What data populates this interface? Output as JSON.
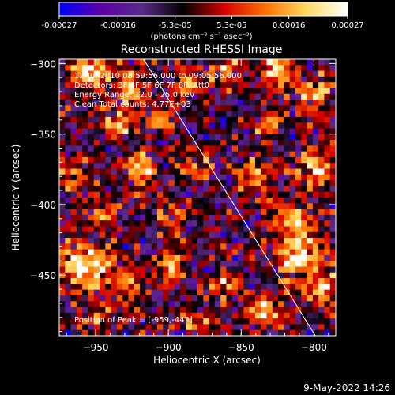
{
  "colorbar": {
    "tick_labels": [
      "-0.00027",
      "-0.00016",
      "-5.3e-05",
      "5.3e-05",
      "0.00016",
      "0.00027"
    ],
    "tick_values": [
      -0.00027,
      -0.00016,
      -5.3e-05,
      5.3e-05,
      0.00016,
      0.00027
    ],
    "range": [
      -0.00027,
      0.00027
    ],
    "units_label": "(photons cm⁻² s⁻¹ asec⁻²)"
  },
  "chart_data": {
    "type": "heatmap",
    "title": "Reconstructed RHESSI Image",
    "xlabel": "Heliocentric X (arcsec)",
    "ylabel": "Heliocentric Y (arcsec)",
    "xlim": [
      -975,
      -785
    ],
    "ylim": [
      -493,
      -297
    ],
    "x_ticks": [
      -950,
      -900,
      -850,
      -800
    ],
    "x_tick_labels": [
      "−950",
      "−900",
      "−850",
      "−800"
    ],
    "y_ticks": [
      -300,
      -350,
      -400,
      -450
    ],
    "y_tick_labels": [
      "−300",
      "−350",
      "−400",
      "−450"
    ],
    "annotations": [
      "12-Jul-2010 08:59:56.000 to 09:05:56.000",
      "Detectors: 3F 4F 5F 6F 7F 8F, Att0",
      "Energy Range: 12.0 - 25.0 keV",
      "Clean  Total counts: 4.77E+03"
    ],
    "peak_label": "Position of Peak = [-959,-443]",
    "peak": [
      -959,
      -443
    ],
    "grid": false,
    "limb_line": [
      [
        -917,
        -297
      ],
      [
        -799,
        -493
      ]
    ],
    "hot_spots": [
      {
        "x": -955,
        "y": -305,
        "s": 14,
        "a": 0.95
      },
      {
        "x": -925,
        "y": -318,
        "s": 12,
        "a": 0.7
      },
      {
        "x": -885,
        "y": -312,
        "s": 10,
        "a": 0.7
      },
      {
        "x": -860,
        "y": -305,
        "s": 10,
        "a": 0.6
      },
      {
        "x": -825,
        "y": -305,
        "s": 12,
        "a": 0.8
      },
      {
        "x": -800,
        "y": -320,
        "s": 12,
        "a": 0.8
      },
      {
        "x": -935,
        "y": -345,
        "s": 12,
        "a": 0.7
      },
      {
        "x": -905,
        "y": -340,
        "s": 10,
        "a": 0.6
      },
      {
        "x": -830,
        "y": -345,
        "s": 10,
        "a": 0.6
      },
      {
        "x": -965,
        "y": -380,
        "s": 10,
        "a": 0.6
      },
      {
        "x": -920,
        "y": -375,
        "s": 12,
        "a": 0.7
      },
      {
        "x": -880,
        "y": -370,
        "s": 10,
        "a": 0.55
      },
      {
        "x": -840,
        "y": -380,
        "s": 12,
        "a": 0.7
      },
      {
        "x": -800,
        "y": -375,
        "s": 14,
        "a": 0.85
      },
      {
        "x": -945,
        "y": -405,
        "s": 12,
        "a": 0.65
      },
      {
        "x": -895,
        "y": -410,
        "s": 10,
        "a": 0.55
      },
      {
        "x": -815,
        "y": -410,
        "s": 12,
        "a": 0.75
      },
      {
        "x": -959,
        "y": -443,
        "s": 16,
        "a": 1.0
      },
      {
        "x": -930,
        "y": -455,
        "s": 12,
        "a": 0.7
      },
      {
        "x": -900,
        "y": -445,
        "s": 10,
        "a": 0.6
      },
      {
        "x": -860,
        "y": -455,
        "s": 10,
        "a": 0.6
      },
      {
        "x": -810,
        "y": -435,
        "s": 16,
        "a": 0.95
      },
      {
        "x": -795,
        "y": -460,
        "s": 12,
        "a": 0.8
      },
      {
        "x": -835,
        "y": -475,
        "s": 12,
        "a": 0.8
      },
      {
        "x": -950,
        "y": -480,
        "s": 10,
        "a": 0.55
      },
      {
        "x": -880,
        "y": -485,
        "s": 10,
        "a": 0.5
      }
    ]
  },
  "timestamp": "9-May-2022 14:26",
  "colors": {
    "background": "#000000",
    "text": "#ffffff",
    "colormap": [
      "#0000ff",
      "#5a00a8",
      "#5a2a8a",
      "#000000",
      "#d40000",
      "#ff7000",
      "#ffd860",
      "#ffffff"
    ]
  }
}
